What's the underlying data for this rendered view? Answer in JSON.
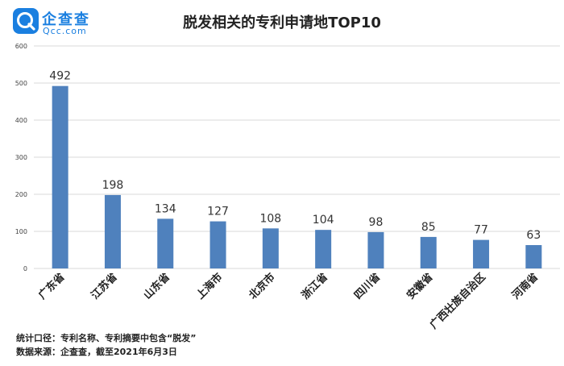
{
  "brand": {
    "name": "企查查",
    "domain": "Qcc.com"
  },
  "footer": {
    "line1": "统计口径：专利名称、专利摘要中包含“脱发”",
    "line2": "数据来源：企查查，截至2021年6月3日"
  },
  "colors": {
    "bar": "#4f81bd",
    "logo": "#1a7fe0",
    "grid": "#d9d9d9"
  },
  "chart_data": {
    "type": "bar",
    "title": "脱发相关的专利申请地TOP10",
    "categories": [
      "广东省",
      "江苏省",
      "山东省",
      "上海市",
      "北京市",
      "浙江省",
      "四川省",
      "安徽省",
      "广西壮族自治区",
      "河南省"
    ],
    "values": [
      492,
      198,
      134,
      127,
      108,
      104,
      98,
      85,
      77,
      63
    ],
    "xlabel": "",
    "ylabel": "",
    "ylim": [
      0,
      600
    ],
    "yticks": [
      0,
      100,
      200,
      300,
      400,
      500,
      600
    ],
    "grid": true,
    "data_labels": true
  }
}
